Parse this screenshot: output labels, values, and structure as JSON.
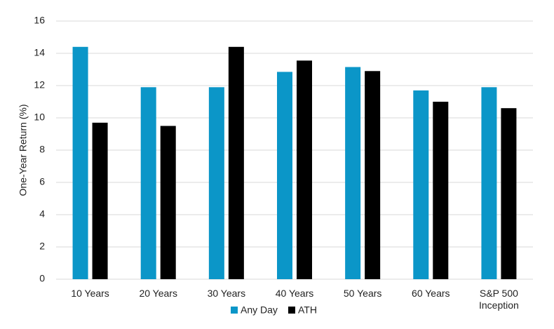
{
  "chart_data": {
    "type": "bar",
    "y_label": "One-Year Return (%)",
    "categories": [
      "10 Years",
      "20 Years",
      "30 Years",
      "40 Years",
      "50 Years",
      "60 Years",
      "S&P 500 Inception"
    ],
    "series": [
      {
        "name": "Any Day",
        "color": "#0b96c8",
        "values": [
          14.4,
          11.9,
          11.9,
          12.85,
          13.15,
          11.7,
          11.9
        ]
      },
      {
        "name": "ATH",
        "color": "#000000",
        "values": [
          9.7,
          9.5,
          14.4,
          13.55,
          12.9,
          11.0,
          10.6
        ]
      }
    ],
    "ylim": [
      0,
      16
    ],
    "yticks": [
      0,
      2,
      4,
      6,
      8,
      10,
      12,
      14,
      16
    ],
    "grid": true,
    "legend": "bottom"
  }
}
